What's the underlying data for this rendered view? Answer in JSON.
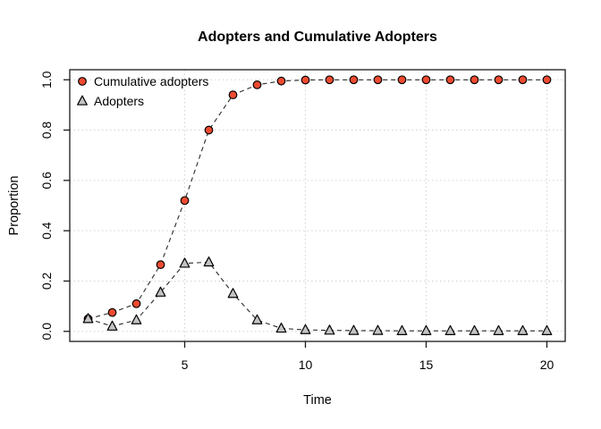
{
  "chart_data": {
    "type": "line",
    "title": "Adopters and Cumulative Adopters",
    "xlabel": "Time",
    "ylabel": "Proportion",
    "x": [
      1,
      2,
      3,
      4,
      5,
      6,
      7,
      8,
      9,
      10,
      11,
      12,
      13,
      14,
      15,
      16,
      17,
      18,
      19,
      20
    ],
    "series": [
      {
        "name": "Cumulative adopters",
        "marker": "circle",
        "marker_fill": "#ed4b31",
        "values": [
          0.05,
          0.075,
          0.11,
          0.265,
          0.52,
          0.8,
          0.94,
          0.98,
          0.995,
          0.999,
          1.0,
          1.0,
          1.0,
          1.0,
          1.0,
          1.0,
          1.0,
          1.0,
          1.0,
          1.0
        ]
      },
      {
        "name": "Adopters",
        "marker": "triangle",
        "marker_fill": "#c3c3c3",
        "values": [
          0.05,
          0.02,
          0.045,
          0.155,
          0.27,
          0.275,
          0.15,
          0.045,
          0.012,
          0.006,
          0.004,
          0.003,
          0.003,
          0.002,
          0.002,
          0.002,
          0.002,
          0.002,
          0.002,
          0.002
        ]
      }
    ],
    "x_ticks": [
      5,
      10,
      15,
      20
    ],
    "y_ticks": [
      "0.0",
      "0.2",
      "0.4",
      "0.6",
      "0.8",
      "1.0"
    ],
    "xlim": [
      0.24,
      20.76
    ],
    "ylim": [
      -0.04,
      1.04
    ],
    "grid": true,
    "grid_style": "dotted",
    "line_style": "dashed",
    "line_color": "#2a2a2a",
    "grid_color": "#d2d2d2",
    "axis_color": "#1a1a1a",
    "marker_stroke": "#000000",
    "background": "#ffffff",
    "legend_position": "top-left"
  }
}
